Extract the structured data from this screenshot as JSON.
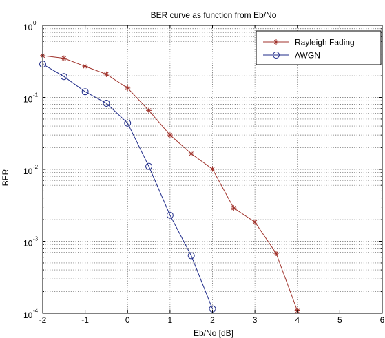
{
  "chart_data": {
    "type": "line",
    "title": "BER curve as function from Eb/No",
    "xlabel": "Eb/No [dB]",
    "ylabel": "BER",
    "xlim": [
      -2,
      6
    ],
    "ylim": [
      0.0001,
      1
    ],
    "yscale": "log",
    "grid": true,
    "legend_position": "top-right",
    "x_ticks": [
      "-2",
      "-1",
      "0",
      "1",
      "2",
      "3",
      "4",
      "5",
      "6"
    ],
    "y_ticks": [
      {
        "base": "10",
        "exp": "0"
      },
      {
        "base": "10",
        "exp": "-1"
      },
      {
        "base": "10",
        "exp": "-2"
      },
      {
        "base": "10",
        "exp": "-3"
      },
      {
        "base": "10",
        "exp": "-4"
      }
    ],
    "series": [
      {
        "name": "Rayleigh Fading",
        "color": "#a0332c",
        "marker": "asterisk",
        "x": [
          -2,
          -1.5,
          -1,
          -0.5,
          0,
          0.5,
          1,
          1.5,
          2,
          2.5,
          3,
          3.5,
          4
        ],
        "y": [
          0.38,
          0.35,
          0.27,
          0.21,
          0.135,
          0.066,
          0.03,
          0.0165,
          0.0101,
          0.0029,
          0.00185,
          0.00068,
          0.000108
        ]
      },
      {
        "name": "AWGN",
        "color": "#1f2b8a",
        "marker": "circle",
        "x": [
          -2,
          -1.5,
          -1,
          -0.5,
          0,
          0.5,
          1,
          1.5,
          2
        ],
        "y": [
          0.29,
          0.195,
          0.12,
          0.083,
          0.044,
          0.011,
          0.0023,
          0.00063,
          0.000115
        ]
      }
    ]
  }
}
